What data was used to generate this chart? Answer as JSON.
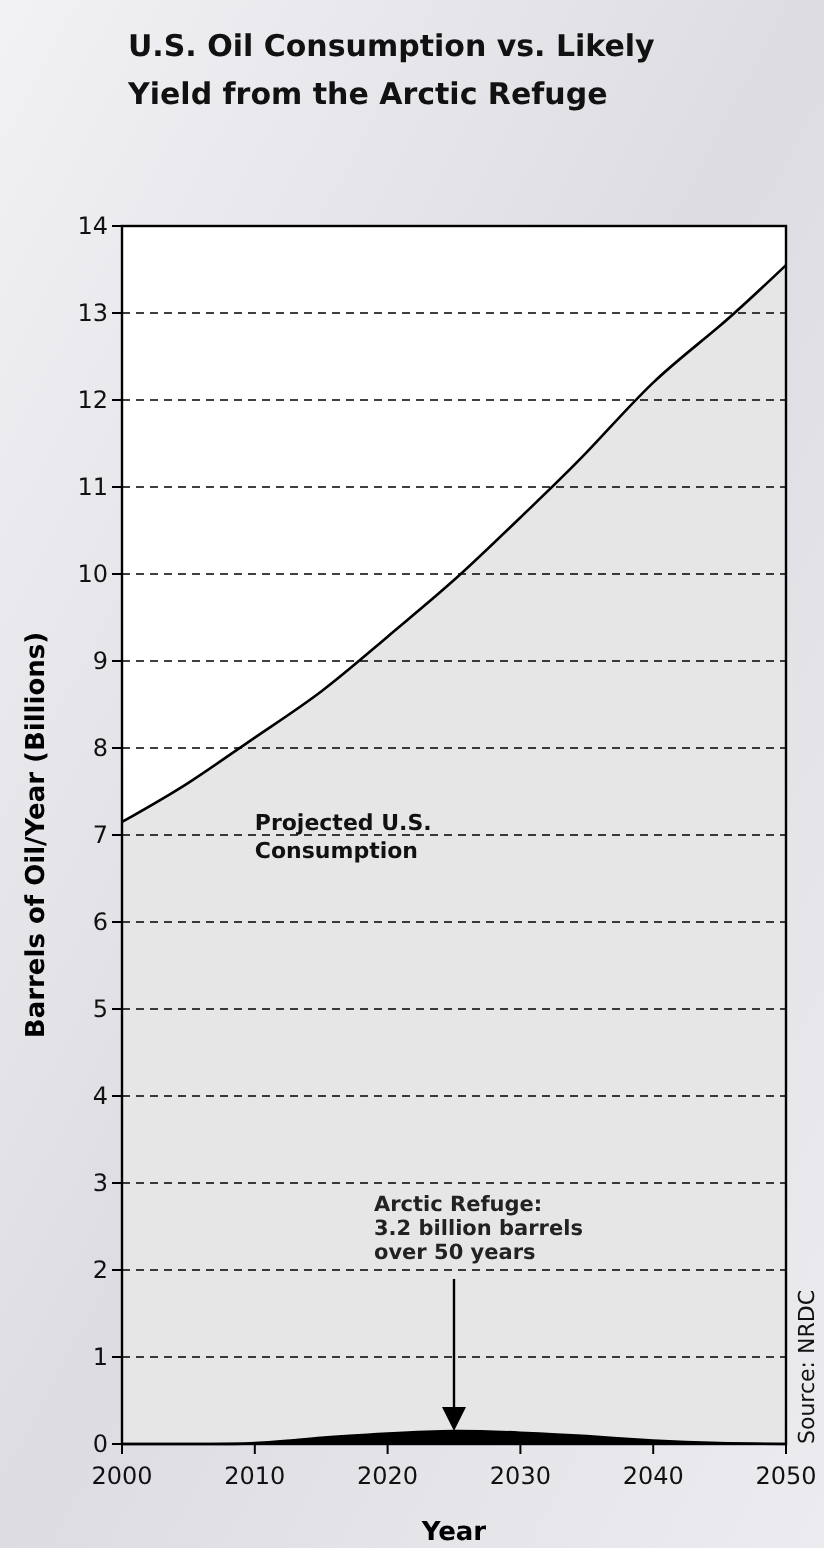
{
  "chart_data": {
    "type": "area",
    "title": "U.S. Oil Consumption vs. Likely\nYield from the Arctic Refuge",
    "xlabel": "Year",
    "ylabel": "Barrels of Oil/Year (Billions)",
    "x": [
      2000,
      2005,
      2010,
      2015,
      2020,
      2025,
      2030,
      2035,
      2040,
      2045,
      2050
    ],
    "series": [
      {
        "name": "Projected U.S.\nConsumption",
        "color": "#e6e6e6",
        "values": [
          7.15,
          7.6,
          8.12,
          8.65,
          9.28,
          9.93,
          10.65,
          11.4,
          12.2,
          12.85,
          13.55
        ]
      },
      {
        "color": "#000000",
        "values": [
          0,
          0,
          0.01,
          0.07,
          0.12,
          0.15,
          0.13,
          0.09,
          0.04,
          0.01,
          0
        ]
      }
    ],
    "xlim": [
      2000,
      2050
    ],
    "xticks": [
      2000,
      2010,
      2020,
      2030,
      2040,
      2050
    ],
    "ylim": [
      0,
      14
    ],
    "yticks": [
      0,
      1,
      2,
      3,
      4,
      5,
      6,
      7,
      8,
      9,
      10,
      11,
      12,
      13,
      14
    ],
    "grid": "y",
    "line_style": "dashed",
    "annotations": [
      "Arctic Refuge:\n3.2 billion barrels\nover 50 years",
      "Source: NRDC"
    ]
  }
}
